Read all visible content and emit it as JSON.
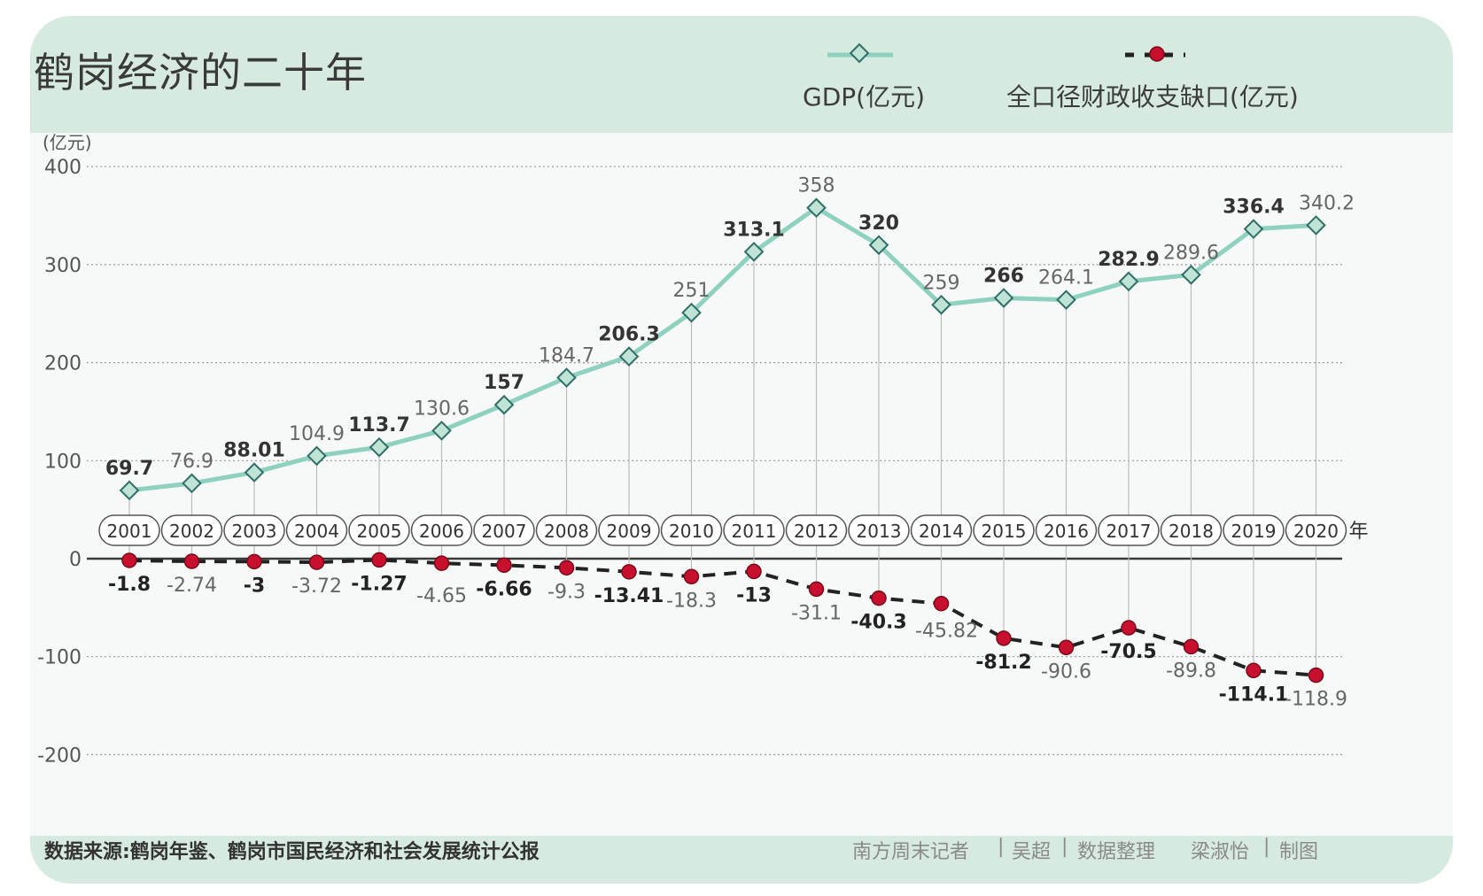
{
  "title": "鹤岗经济的二十年",
  "legend": {
    "gdp": "GDP(亿元)",
    "deficit": "全口径财政收支缺口(亿元)"
  },
  "footer": {
    "source": "数据来源:鹤岗年鉴、鹤岗市国民经济和社会发展统计公报",
    "credit": [
      "南方周末记者",
      "|",
      "吴超",
      "|",
      "数据整理",
      "梁淑怡",
      "|",
      "制图"
    ]
  },
  "colors": {
    "gdp_line": "#8fd1bf",
    "gdp_marker_fill": "#bfe3d5",
    "deficit_marker": "#c8102e",
    "deficit_line": "#222222",
    "header_bg": "#d6eadf"
  },
  "chart_data": {
    "type": "line",
    "y_unit_label": "(亿元)",
    "x_unit_suffix": "年",
    "ylim": [
      -200,
      400
    ],
    "yticks": [
      400,
      300,
      200,
      100,
      0,
      -100,
      -200
    ],
    "grid": true,
    "legend_position": "top-right",
    "x": [
      "2001",
      "2002",
      "2003",
      "2004",
      "2005",
      "2006",
      "2007",
      "2008",
      "2009",
      "2010",
      "2011",
      "2012",
      "2013",
      "2014",
      "2015",
      "2016",
      "2017",
      "2018",
      "2019",
      "2020"
    ],
    "series": [
      {
        "name": "GDP(亿元)",
        "values": [
          69.7,
          76.9,
          88.01,
          104.9,
          113.7,
          130.6,
          157,
          184.7,
          206.3,
          251,
          313.1,
          358,
          320,
          259,
          266,
          264.1,
          282.9,
          289.6,
          336.4,
          340.2
        ],
        "labels": [
          "69.7",
          "76.9",
          "88.01",
          "104.9",
          "113.7",
          "130.6",
          "157",
          "184.7",
          "206.3",
          "251",
          "313.1",
          "358",
          "320",
          "259",
          "266",
          "264.1",
          "282.9",
          "289.6",
          "336.4",
          "340.2"
        ]
      },
      {
        "name": "全口径财政收支缺口(亿元)",
        "values": [
          -1.8,
          -2.74,
          -3,
          -3.72,
          -1.27,
          -4.65,
          -6.66,
          -9.3,
          -13.41,
          -18.3,
          -13,
          -31.1,
          -40.3,
          -45.82,
          -81.2,
          -90.6,
          -70.5,
          -89.8,
          -114.1,
          -118.9
        ],
        "labels": [
          "-1.8",
          "-2.74",
          "-3",
          "-3.72",
          "-1.27",
          "-4.65",
          "-6.66",
          "-9.3",
          "-13.41",
          "-18.3",
          "-13",
          "-31.1",
          "-40.3",
          "-45.82",
          "-81.2",
          "-90.6",
          "-70.5",
          "-89.8",
          "-114.1",
          "-118.9"
        ]
      }
    ]
  }
}
